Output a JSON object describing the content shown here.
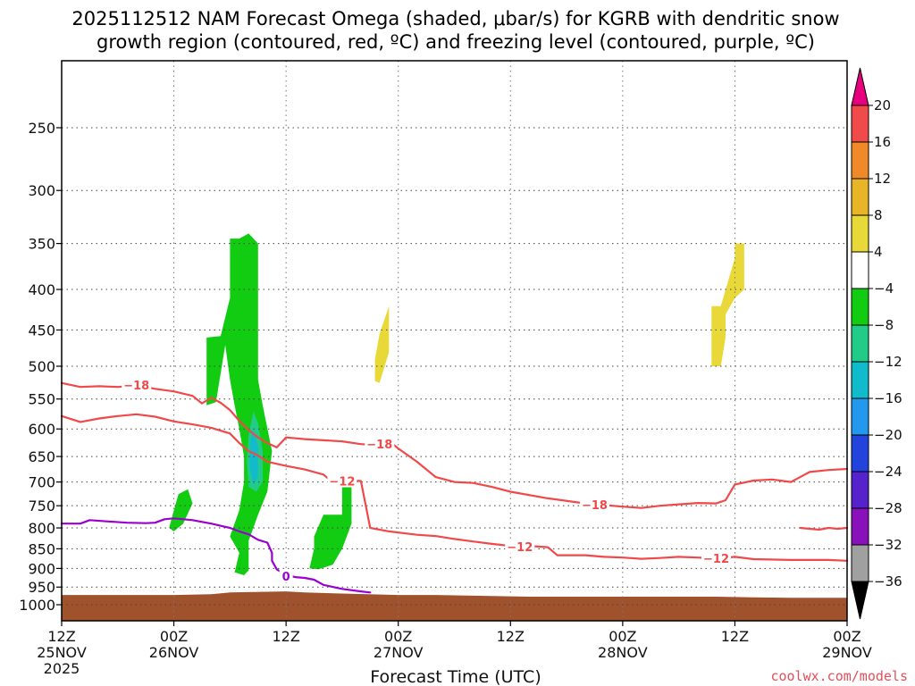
{
  "chart_data": {
    "type": "time-height cross-section",
    "title_line1": "2025112512 NAM Forecast Omega (shaded, μbar/s) for KGRB with dendritic snow",
    "title_line2": "growth region (contoured, red, ºC) and freezing level (contoured, purple, ºC)",
    "xlabel": "Forecast Time (UTC)",
    "credit": "coolwx.com/models",
    "x_range_hours": [
      0,
      84
    ],
    "x_ticks": [
      {
        "hour": 0,
        "lines": [
          "12Z",
          "25NOV",
          "2025"
        ]
      },
      {
        "hour": 12,
        "lines": [
          "00Z",
          "26NOV"
        ]
      },
      {
        "hour": 24,
        "lines": [
          "12Z"
        ]
      },
      {
        "hour": 36,
        "lines": [
          "00Z",
          "27NOV"
        ]
      },
      {
        "hour": 48,
        "lines": [
          "12Z"
        ]
      },
      {
        "hour": 60,
        "lines": [
          "00Z",
          "28NOV"
        ]
      },
      {
        "hour": 72,
        "lines": [
          "12Z"
        ]
      },
      {
        "hour": 84,
        "lines": [
          "00Z",
          "29NOV"
        ]
      }
    ],
    "y_unit": "hPa",
    "y_range_hpa": [
      1040,
      200
    ],
    "y_ticks": [
      250,
      300,
      350,
      400,
      450,
      500,
      550,
      600,
      650,
      700,
      750,
      800,
      850,
      900,
      950,
      1000
    ],
    "colorbar": {
      "levels": [
        "20",
        "16",
        "12",
        "8",
        "4",
        "−4",
        "−8",
        "−12",
        "−16",
        "−20",
        "−24",
        "−28",
        "−32",
        "−36"
      ],
      "colors": [
        "#e6007e",
        "#f04a4a",
        "#f08a28",
        "#e8b428",
        "#e8d838",
        "#ffffff",
        "#11cc11",
        "#22cc88",
        "#11bbcc",
        "#2299ee",
        "#2244dd",
        "#5522cc",
        "#8811bb",
        "#a0a0a0",
        "#000000"
      ]
    },
    "series": [
      {
        "name": "-18 C isotherm (upper)",
        "color": "#f0494a",
        "label": "−18",
        "points": [
          [
            0,
            525
          ],
          [
            2,
            531
          ],
          [
            4,
            530
          ],
          [
            6,
            531
          ],
          [
            8,
            529
          ],
          [
            10,
            534
          ],
          [
            12,
            538
          ],
          [
            14,
            545
          ],
          [
            15,
            557
          ],
          [
            16,
            548
          ],
          [
            17,
            556
          ],
          [
            18,
            568
          ],
          [
            19,
            586
          ],
          [
            20,
            602
          ],
          [
            21,
            615
          ],
          [
            22,
            625
          ],
          [
            23,
            633
          ],
          [
            24,
            615
          ],
          [
            26,
            618
          ],
          [
            28,
            620
          ],
          [
            30,
            622
          ],
          [
            32,
            627
          ],
          [
            33,
            628
          ],
          [
            34,
            621
          ],
          [
            35,
            621
          ],
          [
            36,
            635
          ],
          [
            38,
            660
          ],
          [
            40,
            690
          ],
          [
            42,
            700
          ],
          [
            44,
            702
          ],
          [
            46,
            710
          ],
          [
            48,
            720
          ],
          [
            52,
            734
          ],
          [
            56,
            745
          ],
          [
            60,
            752
          ],
          [
            62,
            755
          ],
          [
            64,
            750
          ],
          [
            68,
            744
          ],
          [
            70,
            745
          ],
          [
            71,
            738
          ],
          [
            72,
            705
          ],
          [
            74,
            697
          ],
          [
            76,
            695
          ],
          [
            78,
            700
          ],
          [
            80,
            680
          ],
          [
            82,
            676
          ],
          [
            84,
            674
          ]
        ]
      },
      {
        "name": "-12 C isotherm (lower)",
        "color": "#f0494a",
        "label": "−12",
        "points": [
          [
            0,
            578
          ],
          [
            2,
            588
          ],
          [
            4,
            582
          ],
          [
            6,
            578
          ],
          [
            8,
            575
          ],
          [
            10,
            579
          ],
          [
            12,
            587
          ],
          [
            14,
            592
          ],
          [
            16,
            598
          ],
          [
            18,
            608
          ],
          [
            19,
            625
          ],
          [
            20,
            640
          ],
          [
            21,
            648
          ],
          [
            22,
            660
          ],
          [
            24,
            668
          ],
          [
            26,
            675
          ],
          [
            28,
            685
          ],
          [
            29,
            701
          ],
          [
            30,
            699
          ],
          [
            31,
            697
          ],
          [
            32,
            698
          ],
          [
            33,
            800
          ],
          [
            35,
            808
          ],
          [
            38,
            816
          ],
          [
            40,
            819
          ],
          [
            42,
            826
          ],
          [
            44,
            832
          ],
          [
            46,
            838
          ],
          [
            48,
            843
          ],
          [
            50,
            843
          ],
          [
            52,
            846
          ],
          [
            53,
            866
          ],
          [
            54,
            866
          ],
          [
            56,
            866
          ],
          [
            58,
            870
          ],
          [
            60,
            872
          ],
          [
            62,
            875
          ],
          [
            64,
            873
          ],
          [
            66,
            870
          ],
          [
            68,
            872
          ],
          [
            70,
            874
          ],
          [
            72,
            870
          ],
          [
            74,
            876
          ],
          [
            78,
            878
          ],
          [
            82,
            878
          ],
          [
            84,
            880
          ]
        ]
      },
      {
        "name": "-12 C isotherm (right closed)",
        "color": "#f0494a",
        "label": "",
        "points": [
          [
            79,
            800
          ],
          [
            81,
            804
          ],
          [
            82,
            800
          ],
          [
            83,
            802
          ],
          [
            84,
            800
          ]
        ]
      },
      {
        "name": "0 C freezing level",
        "color": "#9a00d0",
        "label": "0",
        "points": [
          [
            0,
            790
          ],
          [
            2,
            790
          ],
          [
            3,
            782
          ],
          [
            5,
            785
          ],
          [
            7,
            788
          ],
          [
            9,
            789
          ],
          [
            10,
            788
          ],
          [
            11,
            780
          ],
          [
            12,
            778
          ],
          [
            14,
            782
          ],
          [
            16,
            790
          ],
          [
            18,
            800
          ],
          [
            19,
            808
          ],
          [
            20,
            815
          ],
          [
            21,
            828
          ],
          [
            22,
            835
          ],
          [
            22.5,
            860
          ],
          [
            22.5,
            880
          ],
          [
            23,
            902
          ],
          [
            24,
            918
          ],
          [
            25,
            923
          ],
          [
            26,
            925
          ],
          [
            27,
            930
          ],
          [
            28,
            944
          ],
          [
            30,
            955
          ],
          [
            32,
            962
          ],
          [
            33,
            965
          ]
        ]
      }
    ],
    "shaded_regions": [
      {
        "name": "omega -4 to -8 (upper-left column)",
        "color": "#11cc11",
        "points": [
          [
            15.5,
            460
          ],
          [
            17,
            458
          ],
          [
            18,
            410
          ],
          [
            18,
            345
          ],
          [
            19,
            345
          ],
          [
            20,
            340
          ],
          [
            21,
            350
          ],
          [
            21,
            480
          ],
          [
            21,
            520
          ],
          [
            21.5,
            560
          ],
          [
            22.5,
            640
          ],
          [
            22,
            720
          ],
          [
            21,
            770
          ],
          [
            20.5,
            800
          ],
          [
            20,
            830
          ],
          [
            20,
            870
          ],
          [
            20,
            905
          ],
          [
            19.5,
            918
          ],
          [
            18.5,
            910
          ],
          [
            19,
            860
          ],
          [
            18,
            820
          ],
          [
            19,
            760
          ],
          [
            19.5,
            700
          ],
          [
            19.5,
            650
          ],
          [
            19,
            600
          ],
          [
            18.5,
            560
          ],
          [
            18,
            520
          ],
          [
            17.5,
            470
          ],
          [
            16.5,
            555
          ],
          [
            15.5,
            560
          ],
          [
            15.5,
            500
          ]
        ]
      },
      {
        "name": "omega -8 to -12 (core)",
        "color": "#22cc88",
        "points": [
          [
            20.5,
            570
          ],
          [
            21,
            590
          ],
          [
            21.5,
            640
          ],
          [
            21.5,
            700
          ],
          [
            20.8,
            720
          ],
          [
            20,
            710
          ],
          [
            19.8,
            660
          ],
          [
            20,
            610
          ]
        ]
      },
      {
        "name": "omega -12 to -16 (core)",
        "color": "#11bbcc",
        "points": [
          [
            20.5,
            600
          ],
          [
            21,
            630
          ],
          [
            21,
            690
          ],
          [
            20.5,
            705
          ],
          [
            20.1,
            670
          ],
          [
            20.2,
            620
          ]
        ]
      },
      {
        "name": "omega -4 to -8 (left blob)",
        "color": "#11cc11",
        "points": [
          [
            12.5,
            725
          ],
          [
            13.5,
            715
          ],
          [
            14,
            745
          ],
          [
            13,
            790
          ],
          [
            12,
            808
          ],
          [
            11.5,
            800
          ],
          [
            12,
            760
          ]
        ]
      },
      {
        "name": "omega -4 to -8 (central blob)",
        "color": "#11cc11",
        "points": [
          [
            28,
            770
          ],
          [
            30,
            770
          ],
          [
            30,
            710
          ],
          [
            31,
            705
          ],
          [
            31,
            790
          ],
          [
            30,
            850
          ],
          [
            29,
            890
          ],
          [
            27.5,
            902
          ],
          [
            26.5,
            900
          ],
          [
            27,
            850
          ],
          [
            27,
            820
          ]
        ]
      },
      {
        "name": "omega 4 to 8 (yellow mid)",
        "color": "#e8d838",
        "points": [
          [
            34,
            455
          ],
          [
            35,
            420
          ],
          [
            35,
            480
          ],
          [
            34,
            525
          ],
          [
            33.5,
            522
          ],
          [
            33.5,
            490
          ]
        ]
      },
      {
        "name": "omega 4 to 8 (yellow right)",
        "color": "#e8d838",
        "points": [
          [
            70.5,
            420
          ],
          [
            72,
            365
          ],
          [
            72,
            350
          ],
          [
            73,
            350
          ],
          [
            73,
            400
          ],
          [
            72,
            410
          ],
          [
            71,
            430
          ],
          [
            71,
            460
          ],
          [
            70.5,
            500
          ],
          [
            69.5,
            500
          ],
          [
            69.5,
            420
          ]
        ]
      }
    ],
    "ground": {
      "name": "terrain",
      "color": "#a0522d",
      "points": [
        [
          0,
          972
        ],
        [
          8,
          972
        ],
        [
          12,
          972
        ],
        [
          16,
          970
        ],
        [
          18,
          965
        ],
        [
          24,
          962
        ],
        [
          26,
          965
        ],
        [
          30,
          968
        ],
        [
          36,
          972
        ],
        [
          40,
          972
        ],
        [
          46,
          975
        ],
        [
          50,
          977
        ],
        [
          60,
          977
        ],
        [
          70,
          977
        ],
        [
          74,
          979
        ],
        [
          78,
          980
        ],
        [
          84,
          980
        ]
      ]
    },
    "contour_labels": [
      {
        "hour": 8,
        "hpa": 528,
        "text": "−18",
        "color": "#f0494a"
      },
      {
        "hour": 34,
        "hpa": 627,
        "text": "−18",
        "color": "#f0494a"
      },
      {
        "hour": 57,
        "hpa": 748,
        "text": "−18",
        "color": "#f0494a"
      },
      {
        "hour": 30,
        "hpa": 698,
        "text": "−12",
        "color": "#f0494a"
      },
      {
        "hour": 49,
        "hpa": 845,
        "text": "−12",
        "color": "#f0494a"
      },
      {
        "hour": 70,
        "hpa": 874,
        "text": "−12",
        "color": "#f0494a"
      },
      {
        "hour": 24,
        "hpa": 920,
        "text": "0",
        "color": "#9a00d0"
      }
    ]
  }
}
